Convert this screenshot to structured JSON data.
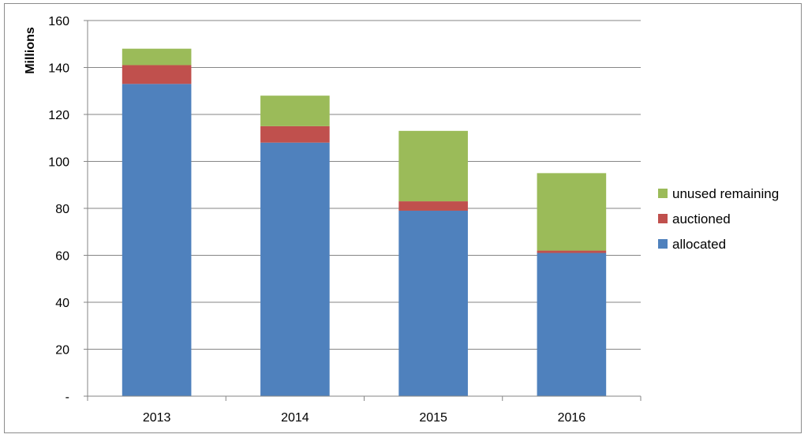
{
  "chart_data": {
    "type": "bar",
    "stacked": true,
    "categories": [
      "2013",
      "2014",
      "2015",
      "2016"
    ],
    "series": [
      {
        "name": "allocated",
        "color": "#4F81BD",
        "values": [
          133,
          108,
          79,
          61
        ]
      },
      {
        "name": "auctioned",
        "color": "#C0504D",
        "values": [
          8,
          7,
          4,
          1
        ]
      },
      {
        "name": "unused remaining",
        "color": "#9BBB59",
        "values": [
          7,
          13,
          30,
          33
        ]
      }
    ],
    "ylabel": "Millions",
    "ylim": [
      0,
      160
    ],
    "yticks": [
      0,
      20,
      40,
      60,
      80,
      100,
      120,
      140,
      160
    ],
    "ytick_labels": [
      "-",
      "20",
      "40",
      "60",
      "80",
      "100",
      "120",
      "140",
      "160"
    ],
    "grid": true,
    "legend_position": "right",
    "legend_order": [
      "unused remaining",
      "auctioned",
      "allocated"
    ]
  }
}
